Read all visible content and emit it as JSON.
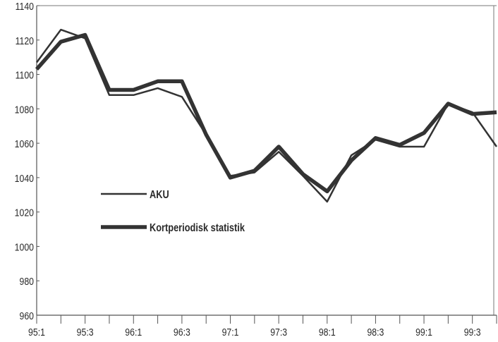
{
  "chart_data": {
    "type": "line",
    "title": "",
    "xlabel": "",
    "ylabel": "",
    "ylim": [
      960,
      1140
    ],
    "yticks": [
      960,
      980,
      1000,
      1020,
      1040,
      1060,
      1080,
      1100,
      1120,
      1140
    ],
    "x": [
      "95:1",
      "95:2",
      "95:3",
      "95:4",
      "96:1",
      "96:2",
      "96:3",
      "96:4",
      "97:1",
      "97:2",
      "97:3",
      "97:4",
      "98:1",
      "98:2",
      "98:3",
      "98:4",
      "99:1",
      "99:2",
      "99:3",
      "99:4"
    ],
    "xtick_labels": [
      "95:1",
      "95:3",
      "96:1",
      "96:3",
      "97:1",
      "97:3",
      "98:1",
      "98:3",
      "99:1",
      "99:3"
    ],
    "grid": false,
    "legend_position": "center-left",
    "series": [
      {
        "name": "AKU",
        "color": "#333333",
        "values": [
          1107,
          1126,
          1121,
          1088,
          1088,
          1092,
          1087,
          1065,
          1041,
          1043,
          1055,
          1041,
          1026,
          1053,
          1062,
          1058,
          1058,
          1083,
          1078,
          1058
        ]
      },
      {
        "name": "Kortperiodisk statistik",
        "color": "#333333",
        "values": [
          1103,
          1119,
          1123,
          1091,
          1091,
          1096,
          1096,
          1065,
          1040,
          1044,
          1058,
          1042,
          1032,
          1050,
          1063,
          1059,
          1066,
          1083,
          1077,
          1078
        ]
      }
    ]
  }
}
